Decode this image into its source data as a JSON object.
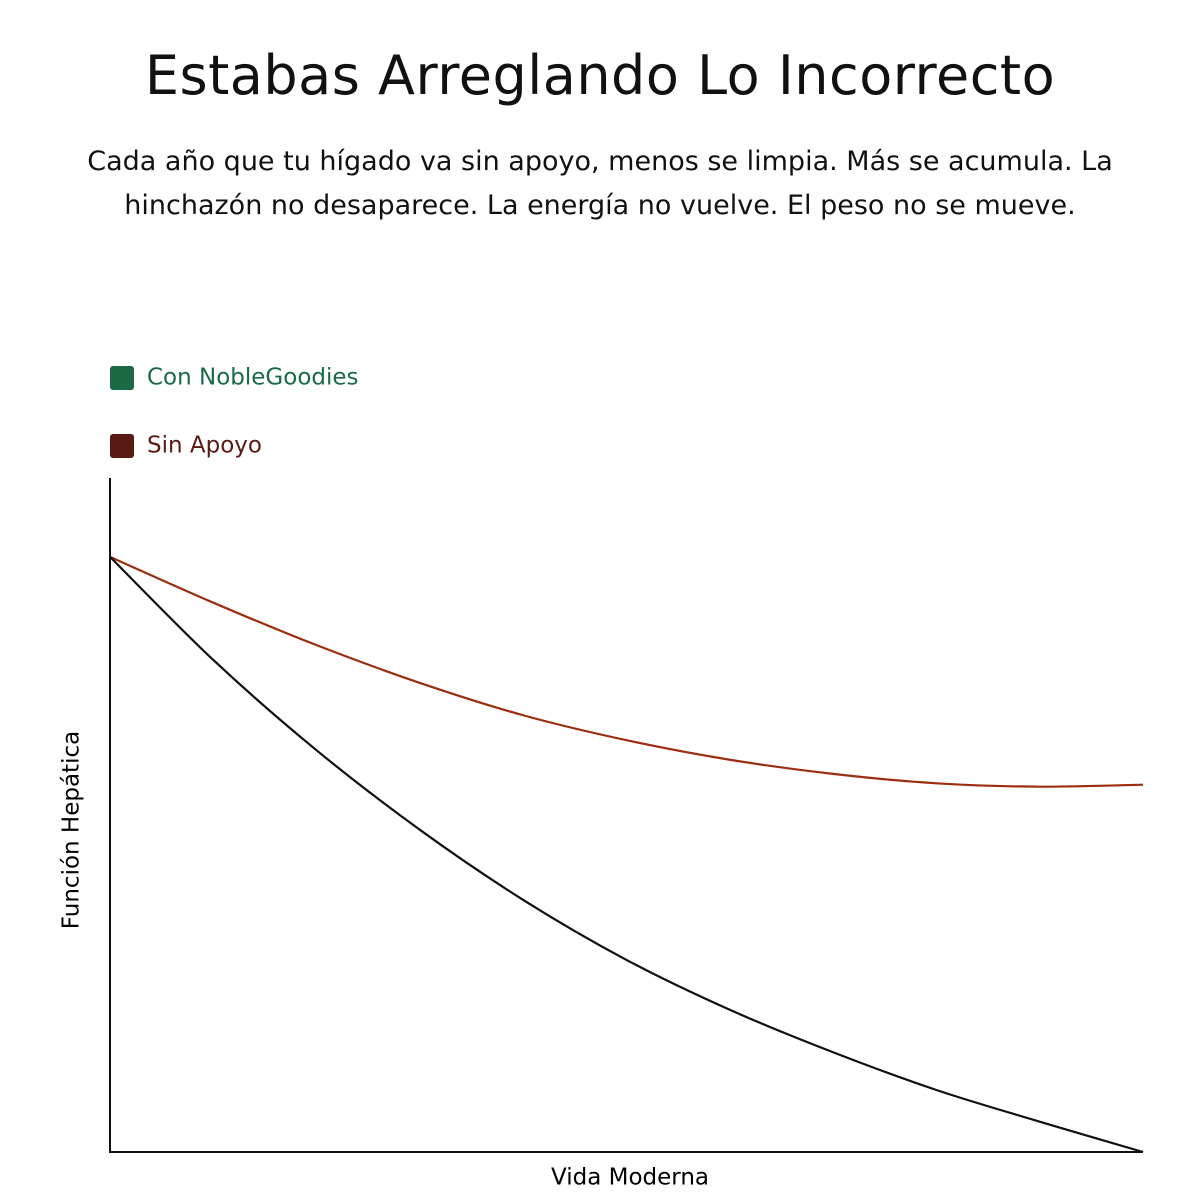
{
  "chart_data": {
    "type": "line",
    "title": "Estabas Arreglando Lo Incorrecto",
    "subtitle": "Cada año que tu hígado va sin apoyo, menos se limpia. Más se acumula. La hinchazón no desaparece. La energía no vuelve. El peso no se mueve.",
    "x_label": "Vida Moderna",
    "y_label": "Función Hepática",
    "x": [
      0,
      1,
      2,
      3,
      4,
      5,
      6,
      7,
      8,
      9,
      10
    ],
    "xlim": [
      0,
      10
    ],
    "ylim": [
      0,
      100
    ],
    "series": [
      {
        "name": "Con NobleGoodies",
        "color": "#9b2d10",
        "legend_color": "#1a6b45",
        "values": [
          88.3,
          81.5,
          75.2,
          69.6,
          64.8,
          61.1,
          58.2,
          56.1,
          54.7,
          54.2,
          54.5
        ]
      },
      {
        "name": "Sin Apoyo",
        "color": "#111111",
        "legend_color": "#5a1a14",
        "values": [
          88.3,
          73.0,
          59.6,
          47.8,
          37.4,
          28.5,
          21.1,
          14.8,
          9.2,
          4.5,
          0
        ]
      }
    ]
  }
}
